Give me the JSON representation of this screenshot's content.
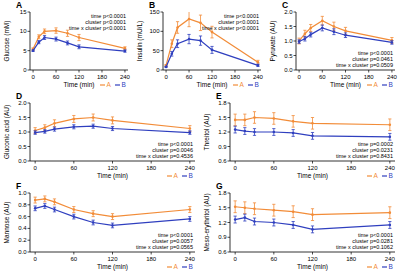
{
  "chart_data": [
    {
      "type": "line",
      "title": "A",
      "x_label": "Time (min)",
      "y_label": "Glucose (mM)",
      "marker": "circle",
      "grid": false,
      "legend": "bottom",
      "x": [
        0,
        15,
        30,
        60,
        90,
        120,
        240
      ],
      "xlim": [
        -8,
        248
      ],
      "xticks": [
        0,
        60,
        120,
        180,
        240
      ],
      "ylim": [
        0,
        15
      ],
      "yticks": [
        0,
        5,
        10,
        15
      ],
      "annotations": [
        "time p<0.0001",
        "cluster p<0.0001",
        "time x cluster p<0.0001"
      ],
      "series": [
        {
          "name": "A",
          "color": "#f28c38",
          "values": [
            5.4,
            8.6,
            10.0,
            10.2,
            9.5,
            8.4,
            5.6
          ],
          "errors": [
            0.3,
            0.5,
            0.6,
            0.7,
            0.8,
            0.8,
            0.4
          ]
        },
        {
          "name": "B",
          "color": "#2f3fbf",
          "values": [
            5.0,
            7.2,
            8.4,
            8.0,
            7.0,
            6.0,
            4.9
          ],
          "errors": [
            0.2,
            0.4,
            0.5,
            0.5,
            0.5,
            0.5,
            0.3
          ]
        }
      ]
    },
    {
      "type": "line",
      "title": "B",
      "x_label": "Time (min)",
      "y_label": "Insulin (mU/L)",
      "marker": "circle",
      "grid": false,
      "legend": "bottom",
      "x": [
        0,
        15,
        30,
        60,
        90,
        120,
        240
      ],
      "xlim": [
        -8,
        248
      ],
      "xticks": [
        0,
        60,
        120,
        180,
        240
      ],
      "ylim": [
        0,
        150
      ],
      "yticks": [
        0,
        50,
        100,
        150
      ],
      "annotations": [
        "time p<0.0001",
        "cluster p<0.0001",
        "time x cluster p<0.0001"
      ],
      "series": [
        {
          "name": "A",
          "color": "#f28c38",
          "values": [
            12,
            68,
            110,
            132,
            122,
            98,
            20
          ],
          "errors": [
            2,
            10,
            15,
            20,
            20,
            15,
            5
          ]
        },
        {
          "name": "B",
          "color": "#2f3fbf",
          "values": [
            8,
            42,
            68,
            80,
            76,
            52,
            12
          ],
          "errors": [
            1,
            6,
            10,
            12,
            12,
            9,
            3
          ]
        }
      ]
    },
    {
      "type": "line",
      "title": "C",
      "x_label": "Time (min)",
      "y_label": "Pyruvate (AU)",
      "marker": "circle",
      "grid": false,
      "legend": "bottom",
      "x": [
        0,
        15,
        30,
        60,
        90,
        120,
        240
      ],
      "xlim": [
        -8,
        248
      ],
      "xticks": [
        0,
        60,
        120,
        180,
        240
      ],
      "ylim": [
        0,
        2
      ],
      "yticks": [
        {
          "value": 0,
          "label": "0.0"
        },
        0.5,
        {
          "value": 1,
          "label": "1.0"
        },
        1.5,
        {
          "value": 2,
          "label": "2.0"
        }
      ],
      "annotations": [
        "time p<0.0001",
        "cluster p=0.0461",
        "time x cluster p=0.0509"
      ],
      "series": [
        {
          "name": "A",
          "color": "#f28c38",
          "values": [
            1.0,
            1.25,
            1.45,
            1.7,
            1.5,
            1.35,
            1.02
          ],
          "errors": [
            0.1,
            0.12,
            0.12,
            0.15,
            0.15,
            0.12,
            0.1
          ]
        },
        {
          "name": "B",
          "color": "#2f3fbf",
          "values": [
            0.98,
            1.08,
            1.22,
            1.45,
            1.32,
            1.2,
            0.95
          ],
          "errors": [
            0.06,
            0.08,
            0.08,
            0.1,
            0.1,
            0.08,
            0.06
          ]
        }
      ]
    },
    {
      "type": "line",
      "title": "D",
      "x_label": "Time (min)",
      "y_label": "Gluconic acid (AU)",
      "marker": "circle",
      "grid": false,
      "legend": "bottom",
      "x": [
        0,
        15,
        30,
        60,
        90,
        120,
        240
      ],
      "xlim": [
        -8,
        248
      ],
      "xticks": [
        0,
        60,
        120,
        180,
        240
      ],
      "ylim": [
        0,
        2
      ],
      "yticks": [
        {
          "value": 0,
          "label": "0.0"
        },
        0.5,
        {
          "value": 1,
          "label": "1.0"
        },
        1.5,
        {
          "value": 2,
          "label": "2.0"
        }
      ],
      "annotations": [
        "time p<0.0001",
        "cluster p=0.0046",
        "time x cluster p=0.4536"
      ],
      "series": [
        {
          "name": "A",
          "color": "#f28c38",
          "values": [
            1.05,
            1.15,
            1.3,
            1.45,
            1.5,
            1.4,
            1.12
          ],
          "errors": [
            0.1,
            0.1,
            0.12,
            0.12,
            0.12,
            0.12,
            0.1
          ]
        },
        {
          "name": "B",
          "color": "#2f3fbf",
          "values": [
            0.98,
            1.02,
            1.1,
            1.18,
            1.2,
            1.12,
            0.98
          ],
          "errors": [
            0.06,
            0.06,
            0.07,
            0.07,
            0.07,
            0.07,
            0.06
          ]
        }
      ]
    },
    {
      "type": "line",
      "title": "E",
      "x_label": "Time (min)",
      "y_label": "Threitol (AU)",
      "marker": "circle",
      "grid": false,
      "legend": "bottom",
      "x": [
        0,
        15,
        30,
        60,
        90,
        120,
        240
      ],
      "xlim": [
        -8,
        248
      ],
      "xticks": [
        0,
        60,
        120,
        180,
        240
      ],
      "ylim": [
        0.6,
        1.8
      ],
      "yticks": [
        0.6,
        0.9,
        1.2,
        1.5,
        1.8
      ],
      "annotations": [
        "time p=0.0002",
        "cluster p=0.0231",
        "time x cluster p=0.8431"
      ],
      "series": [
        {
          "name": "A",
          "color": "#f28c38",
          "values": [
            1.45,
            1.45,
            1.5,
            1.48,
            1.42,
            1.38,
            1.35
          ],
          "errors": [
            0.12,
            0.12,
            0.12,
            0.12,
            0.12,
            0.12,
            0.12
          ]
        },
        {
          "name": "B",
          "color": "#2f3fbf",
          "values": [
            1.25,
            1.22,
            1.2,
            1.2,
            1.18,
            1.12,
            1.1
          ],
          "errors": [
            0.07,
            0.07,
            0.07,
            0.07,
            0.07,
            0.07,
            0.07
          ]
        }
      ]
    },
    {
      "type": "line",
      "title": "F",
      "x_label": "Time (min)",
      "y_label": "Mannose (AU)",
      "marker": "circle",
      "grid": false,
      "legend": "bottom",
      "x": [
        0,
        15,
        30,
        60,
        90,
        120,
        240
      ],
      "xlim": [
        -8,
        248
      ],
      "xticks": [
        0,
        60,
        120,
        180,
        240
      ],
      "ylim": [
        0,
        1
      ],
      "yticks": [
        {
          "value": 0,
          "label": "0.0"
        },
        0.2,
        0.4,
        0.6,
        0.8,
        {
          "value": 1,
          "label": "1.0"
        }
      ],
      "annotations": [
        "time p<0.0001",
        "cluster p=0.0057",
        "time x cluster p=0.0565"
      ],
      "series": [
        {
          "name": "A",
          "color": "#f28c38",
          "values": [
            0.88,
            0.9,
            0.85,
            0.72,
            0.65,
            0.6,
            0.72
          ],
          "errors": [
            0.05,
            0.05,
            0.05,
            0.05,
            0.05,
            0.05,
            0.05
          ]
        },
        {
          "name": "B",
          "color": "#2f3fbf",
          "values": [
            0.74,
            0.78,
            0.72,
            0.6,
            0.5,
            0.45,
            0.56
          ],
          "errors": [
            0.04,
            0.04,
            0.04,
            0.04,
            0.04,
            0.04,
            0.04
          ]
        }
      ]
    },
    {
      "type": "line",
      "title": "G",
      "x_label": "Time (min)",
      "y_label": "Meso-erythritol (AU)",
      "marker": "circle",
      "grid": false,
      "legend": "bottom",
      "x": [
        0,
        15,
        30,
        60,
        90,
        120,
        240
      ],
      "xlim": [
        -8,
        248
      ],
      "xticks": [
        0,
        60,
        120,
        180,
        240
      ],
      "ylim": [
        0.6,
        1.8
      ],
      "yticks": [
        0.6,
        0.9,
        1.2,
        1.5,
        1.8
      ],
      "annotations": [
        "time p<0.0001",
        "cluster p=0.0281",
        "time x cluster p=0.1062"
      ],
      "series": [
        {
          "name": "A",
          "color": "#f28c38",
          "values": [
            1.52,
            1.5,
            1.48,
            1.45,
            1.42,
            1.36,
            1.4
          ],
          "errors": [
            0.12,
            0.12,
            0.12,
            0.12,
            0.12,
            0.12,
            0.12
          ]
        },
        {
          "name": "B",
          "color": "#2f3fbf",
          "values": [
            1.26,
            1.3,
            1.22,
            1.2,
            1.15,
            1.06,
            1.15
          ],
          "errors": [
            0.07,
            0.07,
            0.07,
            0.07,
            0.07,
            0.07,
            0.07
          ]
        }
      ]
    }
  ]
}
